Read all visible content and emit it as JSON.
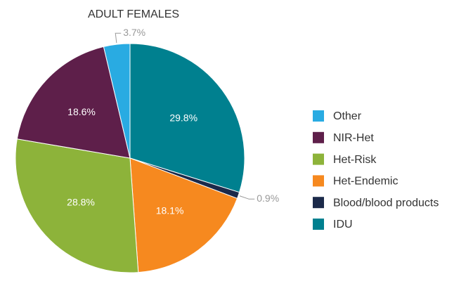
{
  "chart_data": {
    "type": "pie",
    "title": "ADULT FEMALES",
    "categories": [
      "Other",
      "NIR-Het",
      "Het-Risk",
      "Het-Endemic",
      "Blood/blood products",
      "IDU"
    ],
    "values": [
      3.7,
      18.6,
      28.8,
      18.1,
      0.9,
      29.8
    ],
    "value_labels": [
      "3.7%",
      "18.6%",
      "28.8%",
      "18.1%",
      "0.9%",
      "29.8%"
    ],
    "colors": [
      "#29abe2",
      "#5e1f4a",
      "#8db33a",
      "#f6891f",
      "#1b2a4a",
      "#00808f"
    ],
    "legend": "right"
  }
}
